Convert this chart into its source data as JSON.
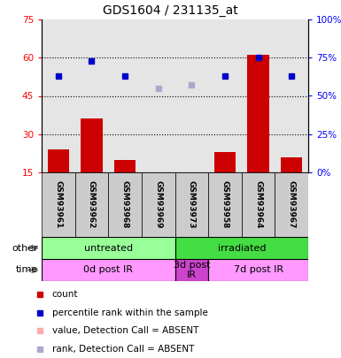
{
  "title": "GDS1604 / 231135_at",
  "samples": [
    "GSM93961",
    "GSM93962",
    "GSM93968",
    "GSM93969",
    "GSM93973",
    "GSM93958",
    "GSM93964",
    "GSM93967"
  ],
  "count_values": [
    24,
    36,
    20,
    14,
    14,
    23,
    61,
    21
  ],
  "count_absent": [
    false,
    false,
    false,
    true,
    true,
    false,
    false,
    false
  ],
  "rank_values": [
    63,
    73,
    63,
    55,
    57,
    63,
    75,
    63
  ],
  "rank_absent": [
    false,
    false,
    false,
    true,
    true,
    false,
    false,
    false
  ],
  "left_ylim": [
    15,
    75
  ],
  "right_ylim": [
    0,
    100
  ],
  "left_yticks": [
    15,
    30,
    45,
    60,
    75
  ],
  "right_yticks": [
    0,
    25,
    50,
    75,
    100
  ],
  "bar_color_present": "#cc0000",
  "bar_color_absent": "#ffaaaa",
  "dot_color_present": "#0000cc",
  "dot_color_absent": "#aaaacc",
  "bg_color": "#ffffff",
  "sample_bg": "#cccccc",
  "other_groups": [
    {
      "label": "untreated",
      "start": 0,
      "end": 4,
      "color": "#99ff99"
    },
    {
      "label": "irradiated",
      "start": 4,
      "end": 8,
      "color": "#44dd44"
    }
  ],
  "time_groups": [
    {
      "label": "0d post IR",
      "start": 0,
      "end": 4,
      "color": "#ff99ff"
    },
    {
      "label": "3d post\nIR",
      "start": 4,
      "end": 5,
      "color": "#cc44cc"
    },
    {
      "label": "7d post IR",
      "start": 5,
      "end": 8,
      "color": "#ff99ff"
    }
  ],
  "legend_items": [
    {
      "color": "#cc0000",
      "label": "count"
    },
    {
      "color": "#0000cc",
      "label": "percentile rank within the sample"
    },
    {
      "color": "#ffaaaa",
      "label": "value, Detection Call = ABSENT"
    },
    {
      "color": "#aaaacc",
      "label": "rank, Detection Call = ABSENT"
    }
  ]
}
